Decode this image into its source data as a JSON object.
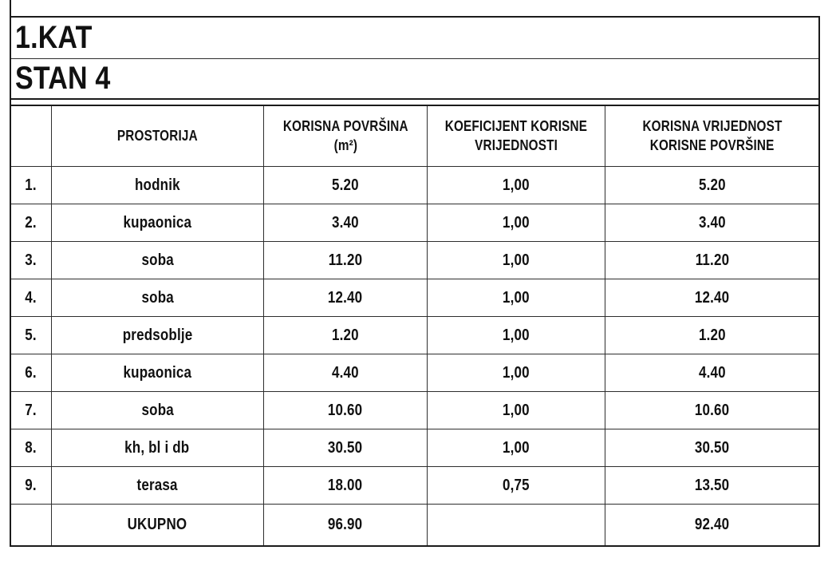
{
  "page": {
    "background": "#ffffff",
    "outer_border_color": "#1b1b1b",
    "grid_line_color": "#2e2e2e",
    "text_color": "#111111"
  },
  "floor_header": {
    "title": "1.KAT"
  },
  "apartment_header": {
    "title": "STAN 4"
  },
  "table": {
    "columns": {
      "num": "",
      "room": "PROSTORIJA",
      "room_line2": "",
      "area_line1": "KORISNA POVRŠINA",
      "area_line2": "(m²)",
      "coef_line1": "KOEFICIJENT KORISNE",
      "coef_line2": "VRIJEDNOSTI",
      "value_line1": "KORISNA VRIJEDNOST",
      "value_line2": "KORISNE POVRŠINE"
    },
    "rows": [
      {
        "num": "1.",
        "room": "hodnik",
        "area": "5.20",
        "coef": "1,00",
        "value": "5.20"
      },
      {
        "num": "2.",
        "room": "kupaonica",
        "area": "3.40",
        "coef": "1,00",
        "value": "3.40"
      },
      {
        "num": "3.",
        "room": "soba",
        "area": "11.20",
        "coef": "1,00",
        "value": "11.20"
      },
      {
        "num": "4.",
        "room": "soba",
        "area": "12.40",
        "coef": "1,00",
        "value": "12.40"
      },
      {
        "num": "5.",
        "room": "predsoblje",
        "area": "1.20",
        "coef": "1,00",
        "value": "1.20"
      },
      {
        "num": "6.",
        "room": "kupaonica",
        "area": "4.40",
        "coef": "1,00",
        "value": "4.40"
      },
      {
        "num": "7.",
        "room": "soba",
        "area": "10.60",
        "coef": "1,00",
        "value": "10.60"
      },
      {
        "num": "8.",
        "room": "kh, bl i db",
        "area": "30.50",
        "coef": "1,00",
        "value": "30.50"
      },
      {
        "num": "9.",
        "room": "terasa",
        "area": "18.00",
        "coef": "0,75",
        "value": "13.50"
      }
    ],
    "total": {
      "num": "",
      "room": "UKUPNO",
      "area": "96.90",
      "coef": "",
      "value": "92.40"
    }
  }
}
